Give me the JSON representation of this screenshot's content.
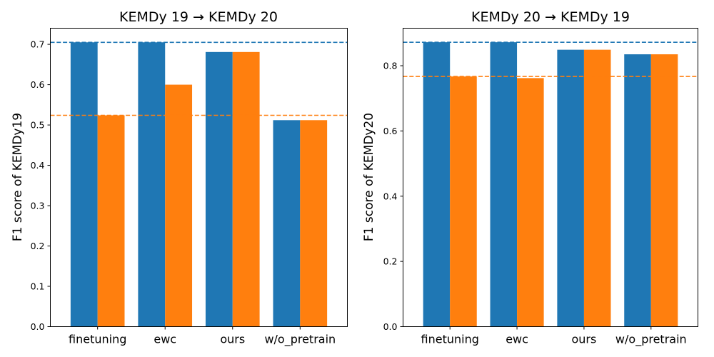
{
  "chart_data": [
    {
      "type": "bar",
      "title": "KEMDy 19 → KEMDy 20",
      "xlabel": "",
      "ylabel": "F1 score of KEMDy19",
      "categories": [
        "finetuning",
        "ewc",
        "ours",
        "w/o_pretrain"
      ],
      "series": [
        {
          "color": "#1f77b4",
          "values": [
            0.705,
            0.705,
            0.681,
            0.512
          ]
        },
        {
          "color": "#ff7f0e",
          "values": [
            0.524,
            0.6,
            0.681,
            0.512
          ]
        }
      ],
      "reference_lines": [
        {
          "color": "#1f77b4",
          "style": "dashed",
          "value": 0.705
        },
        {
          "color": "#ff7f0e",
          "style": "dashed",
          "value": 0.524
        }
      ],
      "ylim": [
        0,
        0.74
      ],
      "yticks": [
        0.0,
        0.1,
        0.2,
        0.3,
        0.4,
        0.5,
        0.6,
        0.7
      ],
      "ytick_labels": [
        "0.0",
        "0.1",
        "0.2",
        "0.3",
        "0.4",
        "0.5",
        "0.6",
        "0.7"
      ],
      "grid": false,
      "legend": "none"
    },
    {
      "type": "bar",
      "title": "KEMDy 20 → KEMDy 19",
      "xlabel": "",
      "ylabel": "F1 score of KEMDy20",
      "categories": [
        "finetuning",
        "ewc",
        "ours",
        "w/o_pretrain"
      ],
      "series": [
        {
          "color": "#1f77b4",
          "values": [
            0.872,
            0.872,
            0.849,
            0.835
          ]
        },
        {
          "color": "#ff7f0e",
          "values": [
            0.767,
            0.762,
            0.849,
            0.835
          ]
        }
      ],
      "reference_lines": [
        {
          "color": "#1f77b4",
          "style": "dashed",
          "value": 0.872
        },
        {
          "color": "#ff7f0e",
          "style": "dashed",
          "value": 0.767
        }
      ],
      "ylim": [
        0,
        0.915
      ],
      "yticks": [
        0.0,
        0.2,
        0.4,
        0.6,
        0.8
      ],
      "ytick_labels": [
        "0.0",
        "0.2",
        "0.4",
        "0.6",
        "0.8"
      ],
      "grid": false,
      "legend": "none"
    }
  ]
}
